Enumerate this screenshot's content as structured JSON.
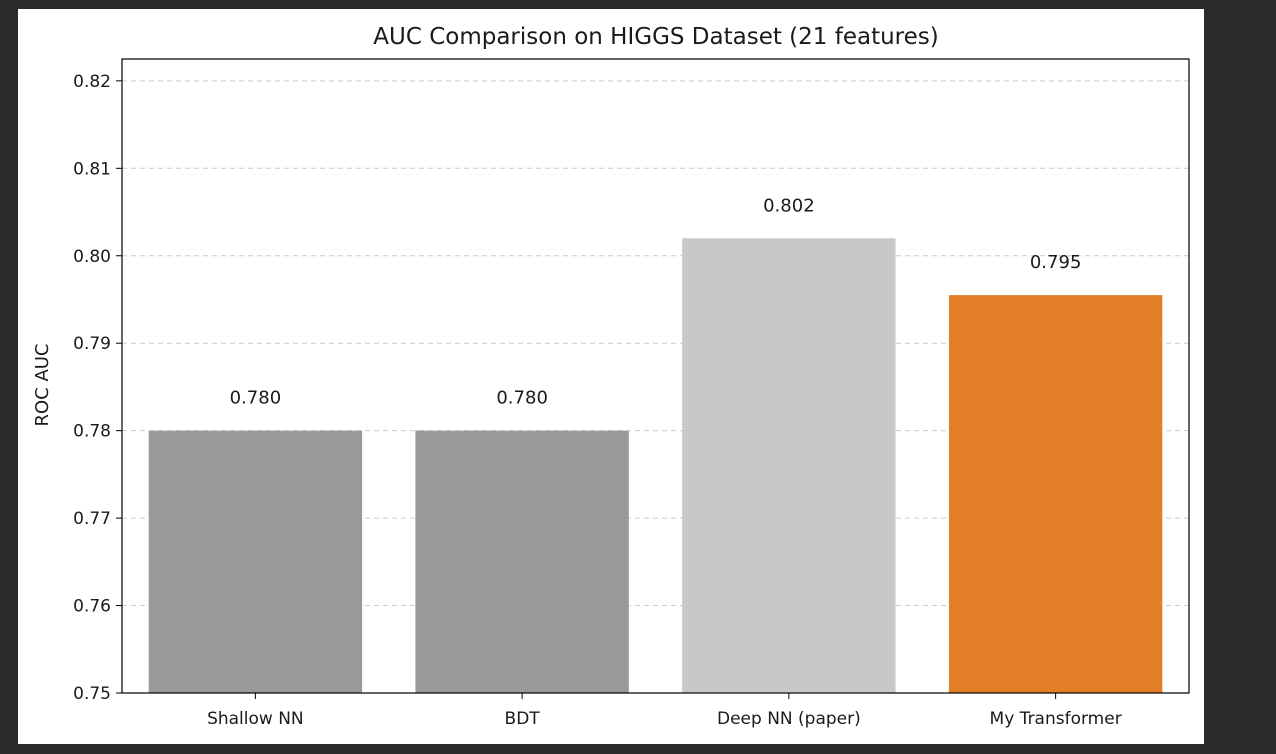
{
  "chart_data": {
    "type": "bar",
    "title": "AUC Comparison on HIGGS Dataset (21 features)",
    "xlabel": "",
    "ylabel": "ROC AUC",
    "categories": [
      "Shallow NN",
      "BDT",
      "Deep NN (paper)",
      "My Transformer"
    ],
    "values": [
      0.78,
      0.78,
      0.802,
      0.7955
    ],
    "data_labels": [
      "0.780",
      "0.780",
      "0.802",
      "0.795"
    ],
    "bar_colors": [
      "#999999",
      "#999999",
      "#c8c8c8",
      "#e37e26"
    ],
    "ylim": [
      0.75,
      0.8225
    ],
    "yticks": [
      0.75,
      0.76,
      0.77,
      0.78,
      0.79,
      0.8,
      0.81,
      0.82
    ],
    "ytick_labels": [
      "0.75",
      "0.76",
      "0.77",
      "0.78",
      "0.79",
      "0.80",
      "0.81",
      "0.82"
    ],
    "grid": "y-dashed",
    "grid_color": "#cccccc",
    "legend": "none"
  }
}
